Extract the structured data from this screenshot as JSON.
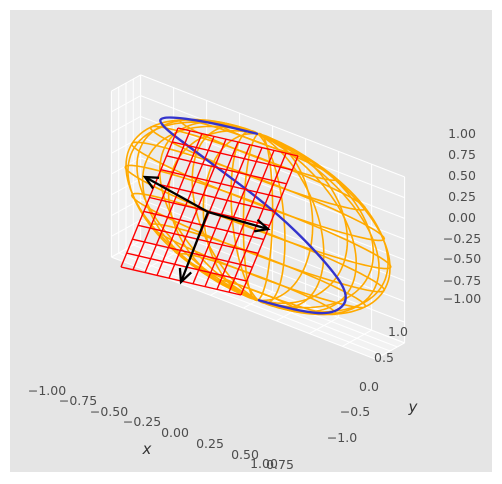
{
  "chart_data": {
    "type": "3d-wireframe",
    "xlabel": "x",
    "ylabel": "y",
    "zlabel": "",
    "xlim": [
      -1.0,
      1.0
    ],
    "ylim": [
      -1.0,
      1.0
    ],
    "zlim": [
      -1.0,
      1.0
    ],
    "x_ticks": [
      "−1.00",
      "−0.75",
      "−0.50",
      "−0.25",
      "0.00",
      "0.25",
      "0.50",
      "0.75",
      "1.00"
    ],
    "y_ticks": [
      "−1.0",
      "−0.5",
      "0.0",
      "0.5",
      "1.0"
    ],
    "z_ticks": [
      "−1.00",
      "−0.75",
      "−0.50",
      "−0.25",
      "0.00",
      "0.25",
      "0.50",
      "0.75",
      "1.00"
    ],
    "grid": true,
    "background": "#e5e5e5",
    "series": [
      {
        "kind": "sphere-wireframe",
        "radius": 1.0,
        "color": "#ffaa00"
      },
      {
        "kind": "curve-on-sphere",
        "color": "#3333cc",
        "points": [
          [
            0.0,
            0.0,
            -1.0
          ],
          [
            0.31,
            0.0,
            -0.95
          ],
          [
            0.59,
            0.0,
            -0.81
          ],
          [
            0.65,
            0.47,
            -0.59
          ],
          [
            0.38,
            0.83,
            -0.31
          ],
          [
            0.0,
            1.0,
            0.0
          ],
          [
            -0.48,
            0.85,
            0.31
          ],
          [
            -0.8,
            0.4,
            0.59
          ],
          [
            -0.7,
            -0.2,
            0.81
          ],
          [
            -0.35,
            -0.2,
            0.95
          ],
          [
            0.0,
            0.0,
            1.0
          ]
        ]
      },
      {
        "kind": "tangent-plane",
        "color": "#ff0000",
        "center": [
          0.0,
          0.0,
          0.0
        ],
        "size": 1.0,
        "grid": 10
      },
      {
        "kind": "frame-vectors",
        "color": "#000000",
        "origin": [
          0.0,
          0.0,
          0.0
        ],
        "vectors": [
          [
            -0.7,
            0.2,
            0.4
          ],
          [
            0.3,
            0.5,
            -0.1
          ],
          [
            -0.3,
            0.3,
            -0.6
          ]
        ]
      }
    ]
  }
}
